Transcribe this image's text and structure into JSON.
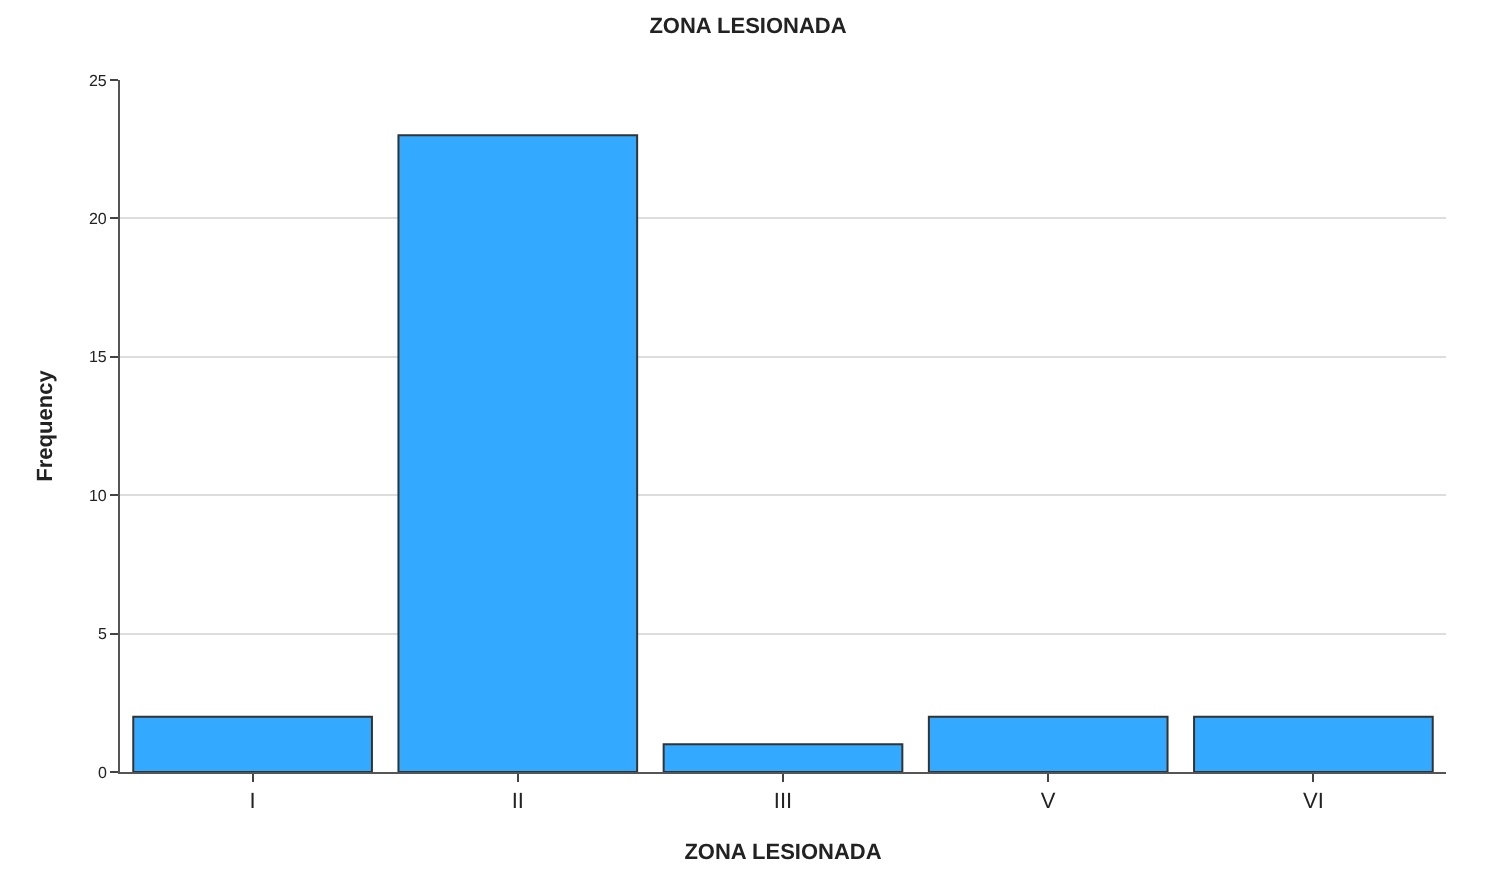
{
  "chart_data": {
    "type": "bar",
    "title": "ZONA LESIONADA",
    "xlabel": "ZONA LESIONADA",
    "ylabel": "Frequency",
    "categories": [
      "I",
      "II",
      "III",
      "V",
      "VI"
    ],
    "values": [
      2,
      23,
      1,
      2,
      2
    ],
    "color": "#33aaff",
    "ylim": [
      0,
      25
    ],
    "yticks": [
      0,
      5,
      10,
      15,
      20,
      25
    ],
    "grid": "y"
  }
}
